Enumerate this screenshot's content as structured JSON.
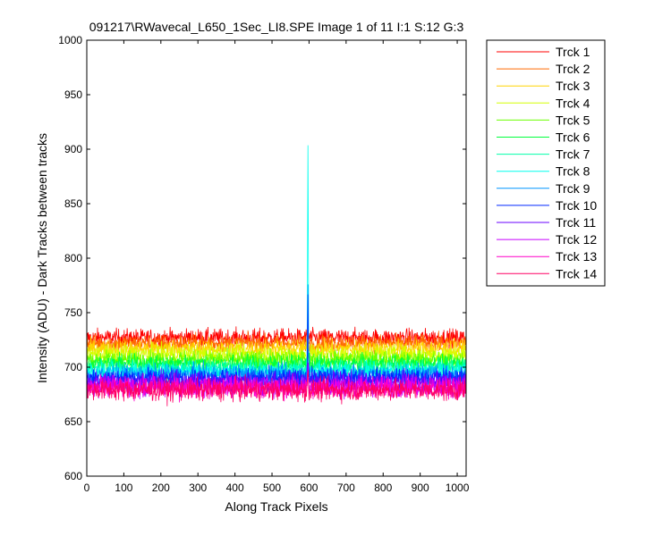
{
  "window": {
    "title": "091217\\RWavecal_L650_1Sec_LI8.SPE  Image 1 of 11  I:1  S:12  G:3"
  },
  "chart_data": {
    "type": "line",
    "title": "091217\\RWavecal_L650_1Sec_LI8.SPE  Image 1 of 11  I:1  S:12  G:3",
    "xlabel": "Along Track Pixels",
    "ylabel": "Intensity (ADU) - Dark Tracks between tracks",
    "xlim": [
      0,
      1024
    ],
    "ylim": [
      600,
      1000
    ],
    "xticks": [
      0,
      100,
      200,
      300,
      400,
      500,
      600,
      700,
      800,
      900,
      1000
    ],
    "yticks": [
      600,
      650,
      700,
      750,
      800,
      850,
      900,
      950,
      1000
    ],
    "grid": false,
    "legend_position": "outside-right-top",
    "n_points": 1024,
    "peak_pixel": 597,
    "series": [
      {
        "name": "Trck 1",
        "color": "#ff0000",
        "baseline": 727,
        "noise": 9,
        "peak": 735
      },
      {
        "name": "Trck 2",
        "color": "#ff6a00",
        "baseline": 722,
        "noise": 9,
        "peak": 730
      },
      {
        "name": "Trck 3",
        "color": "#ffd400",
        "baseline": 717,
        "noise": 9,
        "peak": 725
      },
      {
        "name": "Trck 4",
        "color": "#d4ff00",
        "baseline": 712,
        "noise": 9,
        "peak": 720
      },
      {
        "name": "Trck 5",
        "color": "#6aff00",
        "baseline": 707,
        "noise": 9,
        "peak": 716
      },
      {
        "name": "Trck 6",
        "color": "#00ff3c",
        "baseline": 703,
        "noise": 9,
        "peak": 714
      },
      {
        "name": "Trck 7",
        "color": "#00ffaa",
        "baseline": 699,
        "noise": 9,
        "peak": 720
      },
      {
        "name": "Trck 8",
        "color": "#00ffee",
        "baseline": 696,
        "noise": 9,
        "peak": 900
      },
      {
        "name": "Trck 9",
        "color": "#0096ff",
        "baseline": 693,
        "noise": 10,
        "peak": 777
      },
      {
        "name": "Trck 10",
        "color": "#0028ff",
        "baseline": 690,
        "noise": 10,
        "peak": 765
      },
      {
        "name": "Trck 11",
        "color": "#6a00ff",
        "baseline": 686,
        "noise": 11,
        "peak": 710
      },
      {
        "name": "Trck 12",
        "color": "#c800ff",
        "baseline": 683,
        "noise": 11,
        "peak": 700
      },
      {
        "name": "Trck 13",
        "color": "#ff00c8",
        "baseline": 681,
        "noise": 11,
        "peak": 698
      },
      {
        "name": "Trck 14",
        "color": "#ff0064",
        "baseline": 679,
        "noise": 11,
        "peak": 695
      }
    ]
  }
}
